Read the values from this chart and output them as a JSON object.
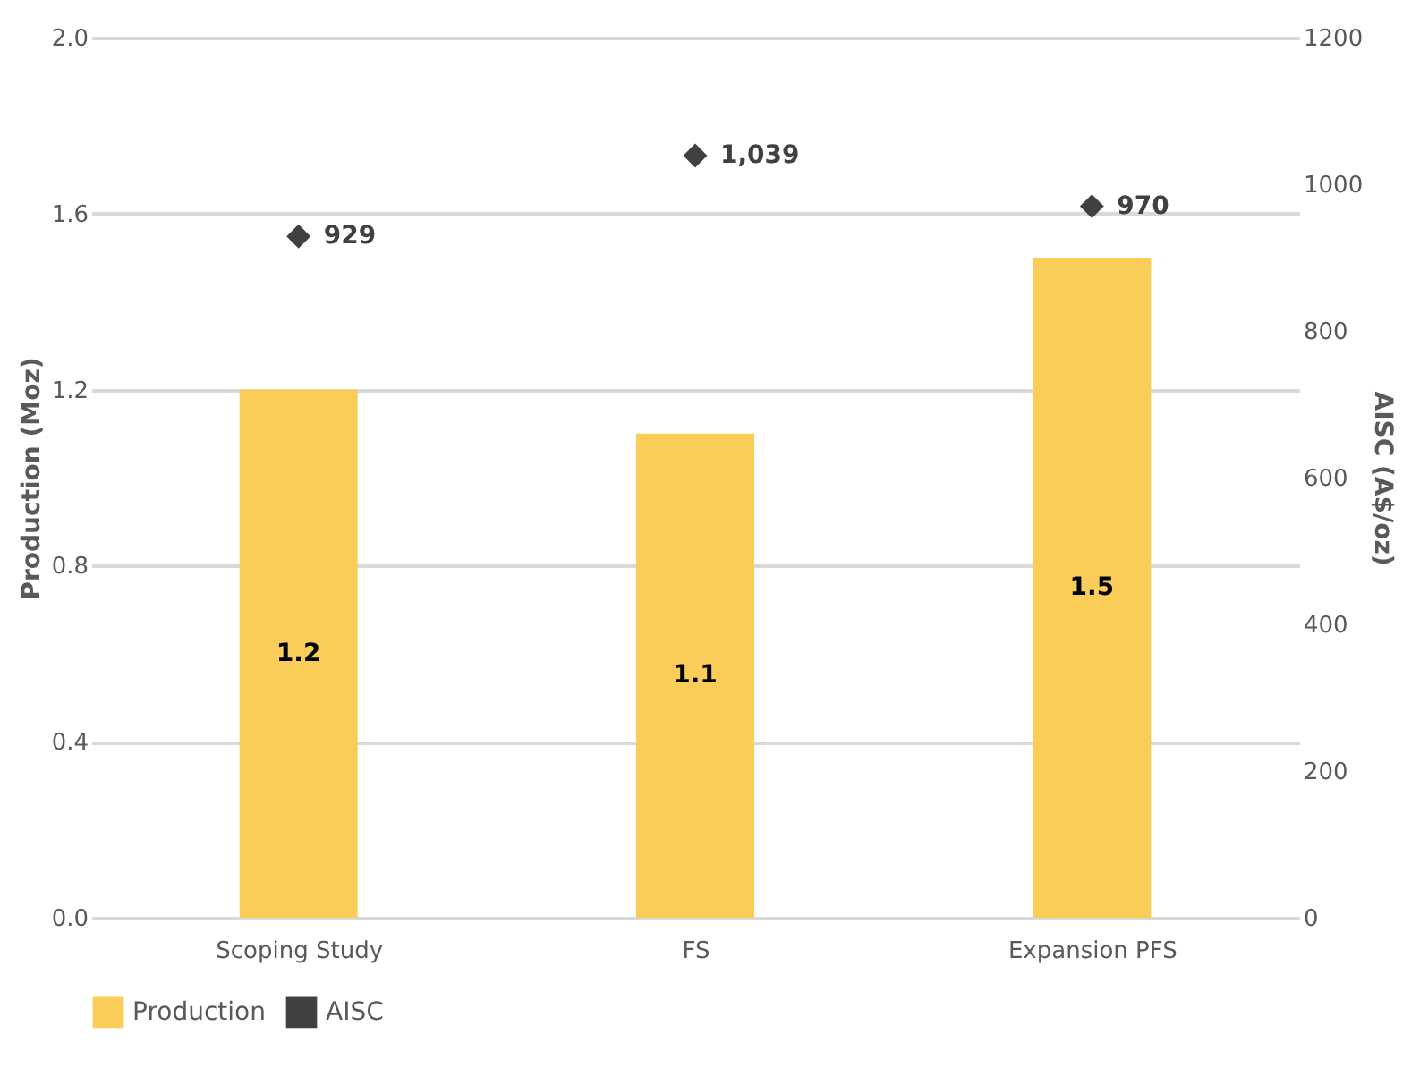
{
  "chart_data": {
    "type": "bar",
    "categories": [
      "Scoping Study",
      "FS",
      "Expansion PFS"
    ],
    "ylabel": "Production (Moz)",
    "y2label": "AISC (A$/oz)",
    "ylim": [
      0,
      2.0
    ],
    "yticks": [
      {
        "value": 0,
        "label": "0.0"
      },
      {
        "value": 0.4,
        "label": "0.4"
      },
      {
        "value": 0.8,
        "label": "0.8"
      },
      {
        "value": 1.2,
        "label": "1.2"
      },
      {
        "value": 1.6,
        "label": "1.6"
      },
      {
        "value": 2.0,
        "label": "2.0"
      }
    ],
    "y2lim": [
      0,
      1200
    ],
    "y2ticks": [
      0,
      200,
      400,
      600,
      800,
      1000,
      1200
    ],
    "grid": "y",
    "legend": "bottom",
    "series": [
      {
        "name": "Production",
        "color": "#f9cd57",
        "values": [
          1.2,
          1.1,
          1.5
        ],
        "value_labels": [
          "1.2",
          "1.1",
          "1.5"
        ]
      },
      {
        "name": "AISC",
        "type": "scatter",
        "axis": "y2",
        "marker": "diamond",
        "color": "#404040",
        "values": [
          929,
          1039,
          970
        ],
        "value_labels": [
          "929",
          "1,039",
          "970"
        ]
      }
    ]
  }
}
